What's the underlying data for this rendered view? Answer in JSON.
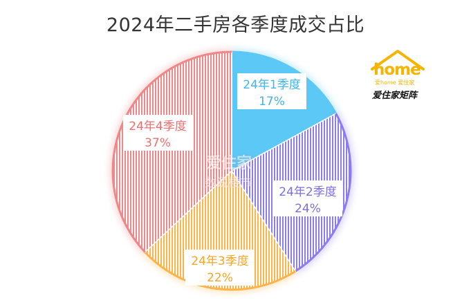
{
  "chart_data": {
    "type": "pie",
    "title": "2024年二手房各季度成交占比",
    "categories": [
      "24年1季度",
      "24年2季度",
      "24年3季度",
      "24年4季度"
    ],
    "values": [
      17,
      24,
      22,
      37
    ],
    "value_labels": [
      "17%",
      "24%",
      "22%",
      "37%"
    ],
    "colors": [
      "#5bc8f5",
      "#8a7df2",
      "#ffb347",
      "#f28686"
    ],
    "label_colors": [
      "#3fb4e8",
      "#7b6fe0",
      "#f5a623",
      "#ec6f6f"
    ],
    "legend": "none"
  },
  "logo": {
    "brand": "home",
    "sub": "爱home 爱住家",
    "script": "爱住家矩阵"
  },
  "watermark": {
    "line1": "爱住家",
    "line2": "数说楼市"
  }
}
